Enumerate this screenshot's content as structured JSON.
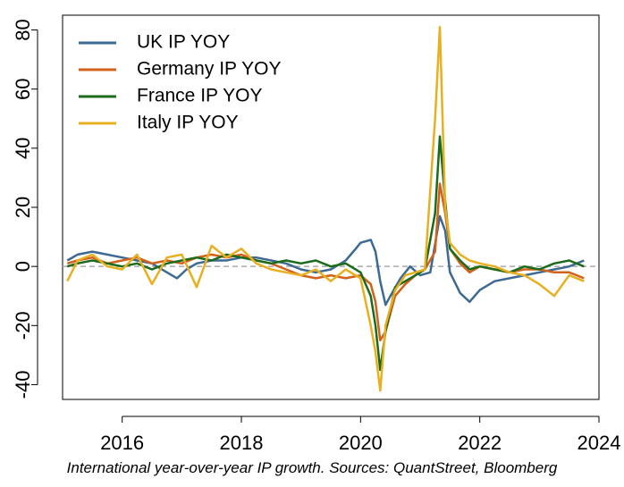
{
  "caption": "International year-over-year IP growth. Sources: QuantStreet, Bloomberg",
  "chart_data": {
    "type": "line",
    "title": "",
    "xlabel": "",
    "ylabel": "",
    "xlim": [
      2015.0,
      2024.0
    ],
    "ylim": [
      -45,
      85
    ],
    "x_ticks": [
      2016,
      2018,
      2020,
      2022,
      2024
    ],
    "y_ticks": [
      -40,
      -20,
      0,
      20,
      40,
      60,
      80
    ],
    "reference_line": {
      "y": 0,
      "style": "dashed",
      "color": "#aaaaaa"
    },
    "legend_position": "top-left",
    "grid": false,
    "series": [
      {
        "name": "UK IP YOY",
        "color": "#3d6a93",
        "points": [
          [
            2015.08,
            2
          ],
          [
            2015.25,
            4
          ],
          [
            2015.5,
            5
          ],
          [
            2015.75,
            4
          ],
          [
            2016.0,
            3
          ],
          [
            2016.25,
            2
          ],
          [
            2016.5,
            1
          ],
          [
            2016.75,
            -2
          ],
          [
            2016.92,
            -4
          ],
          [
            2017.08,
            -1
          ],
          [
            2017.25,
            1
          ],
          [
            2017.5,
            2
          ],
          [
            2017.75,
            2
          ],
          [
            2018.0,
            3
          ],
          [
            2018.25,
            3
          ],
          [
            2018.5,
            2
          ],
          [
            2018.75,
            1
          ],
          [
            2019.0,
            -1
          ],
          [
            2019.25,
            -2
          ],
          [
            2019.5,
            -1
          ],
          [
            2019.75,
            2
          ],
          [
            2019.92,
            6
          ],
          [
            2020.0,
            8
          ],
          [
            2020.17,
            9
          ],
          [
            2020.25,
            5
          ],
          [
            2020.33,
            -5
          ],
          [
            2020.42,
            -13
          ],
          [
            2020.5,
            -10
          ],
          [
            2020.67,
            -4
          ],
          [
            2020.83,
            0
          ],
          [
            2021.0,
            -3
          ],
          [
            2021.17,
            -2
          ],
          [
            2021.33,
            17
          ],
          [
            2021.42,
            12
          ],
          [
            2021.5,
            -2
          ],
          [
            2021.67,
            -9
          ],
          [
            2021.83,
            -12
          ],
          [
            2022.0,
            -8
          ],
          [
            2022.25,
            -5
          ],
          [
            2022.5,
            -4
          ],
          [
            2022.75,
            -3
          ],
          [
            2023.0,
            -2
          ],
          [
            2023.25,
            -1
          ],
          [
            2023.5,
            0
          ],
          [
            2023.75,
            2
          ]
        ]
      },
      {
        "name": "Germany IP YOY",
        "color": "#d2621b",
        "points": [
          [
            2015.08,
            1
          ],
          [
            2015.25,
            2
          ],
          [
            2015.5,
            3
          ],
          [
            2015.75,
            1
          ],
          [
            2016.0,
            2
          ],
          [
            2016.25,
            3
          ],
          [
            2016.5,
            1
          ],
          [
            2016.75,
            2
          ],
          [
            2017.0,
            1
          ],
          [
            2017.25,
            3
          ],
          [
            2017.5,
            4
          ],
          [
            2017.75,
            3
          ],
          [
            2018.0,
            4
          ],
          [
            2018.25,
            2
          ],
          [
            2018.5,
            1
          ],
          [
            2018.75,
            -1
          ],
          [
            2019.0,
            -3
          ],
          [
            2019.25,
            -4
          ],
          [
            2019.5,
            -3
          ],
          [
            2019.75,
            -4
          ],
          [
            2020.0,
            -3
          ],
          [
            2020.17,
            -6
          ],
          [
            2020.25,
            -12
          ],
          [
            2020.33,
            -25
          ],
          [
            2020.42,
            -22
          ],
          [
            2020.58,
            -10
          ],
          [
            2020.75,
            -6
          ],
          [
            2020.92,
            -3
          ],
          [
            2021.08,
            -1
          ],
          [
            2021.25,
            5
          ],
          [
            2021.33,
            28
          ],
          [
            2021.42,
            18
          ],
          [
            2021.5,
            6
          ],
          [
            2021.67,
            1
          ],
          [
            2021.83,
            -2
          ],
          [
            2022.0,
            0
          ],
          [
            2022.25,
            -1
          ],
          [
            2022.5,
            -2
          ],
          [
            2022.75,
            -1
          ],
          [
            2023.0,
            -1
          ],
          [
            2023.25,
            -2
          ],
          [
            2023.5,
            -2
          ],
          [
            2023.75,
            -4
          ]
        ]
      },
      {
        "name": "France IP YOY",
        "color": "#1c6b1c",
        "points": [
          [
            2015.08,
            0
          ],
          [
            2015.25,
            1
          ],
          [
            2015.5,
            2
          ],
          [
            2015.75,
            1
          ],
          [
            2016.0,
            0
          ],
          [
            2016.25,
            1
          ],
          [
            2016.5,
            -1
          ],
          [
            2016.75,
            1
          ],
          [
            2017.0,
            2
          ],
          [
            2017.25,
            3
          ],
          [
            2017.5,
            2
          ],
          [
            2017.75,
            4
          ],
          [
            2018.0,
            3
          ],
          [
            2018.25,
            2
          ],
          [
            2018.5,
            1
          ],
          [
            2018.75,
            2
          ],
          [
            2019.0,
            1
          ],
          [
            2019.25,
            2
          ],
          [
            2019.5,
            0
          ],
          [
            2019.75,
            1
          ],
          [
            2020.0,
            -2
          ],
          [
            2020.17,
            -10
          ],
          [
            2020.25,
            -20
          ],
          [
            2020.33,
            -35
          ],
          [
            2020.42,
            -22
          ],
          [
            2020.58,
            -7
          ],
          [
            2020.75,
            -5
          ],
          [
            2020.92,
            -3
          ],
          [
            2021.08,
            -1
          ],
          [
            2021.25,
            18
          ],
          [
            2021.33,
            44
          ],
          [
            2021.42,
            22
          ],
          [
            2021.5,
            6
          ],
          [
            2021.67,
            2
          ],
          [
            2021.83,
            -1
          ],
          [
            2022.0,
            0
          ],
          [
            2022.25,
            -1
          ],
          [
            2022.5,
            -2
          ],
          [
            2022.75,
            0
          ],
          [
            2023.0,
            -1
          ],
          [
            2023.25,
            1
          ],
          [
            2023.5,
            2
          ],
          [
            2023.75,
            0
          ]
        ]
      },
      {
        "name": "Italy IP YOY",
        "color": "#e8b020",
        "points": [
          [
            2015.08,
            -5
          ],
          [
            2015.25,
            2
          ],
          [
            2015.5,
            4
          ],
          [
            2015.75,
            0
          ],
          [
            2016.0,
            -1
          ],
          [
            2016.25,
            4
          ],
          [
            2016.5,
            -6
          ],
          [
            2016.75,
            3
          ],
          [
            2017.0,
            4
          ],
          [
            2017.25,
            -7
          ],
          [
            2017.5,
            7
          ],
          [
            2017.75,
            3
          ],
          [
            2018.0,
            6
          ],
          [
            2018.25,
            1
          ],
          [
            2018.5,
            -1
          ],
          [
            2018.75,
            -2
          ],
          [
            2019.0,
            -3
          ],
          [
            2019.25,
            -1
          ],
          [
            2019.5,
            -5
          ],
          [
            2019.75,
            -1
          ],
          [
            2020.0,
            -4
          ],
          [
            2020.17,
            -20
          ],
          [
            2020.25,
            -29
          ],
          [
            2020.33,
            -42
          ],
          [
            2020.42,
            -20
          ],
          [
            2020.58,
            -8
          ],
          [
            2020.75,
            -3
          ],
          [
            2020.92,
            -2
          ],
          [
            2021.08,
            -1
          ],
          [
            2021.25,
            50
          ],
          [
            2021.33,
            81
          ],
          [
            2021.42,
            20
          ],
          [
            2021.5,
            8
          ],
          [
            2021.67,
            4
          ],
          [
            2021.83,
            2
          ],
          [
            2022.0,
            1
          ],
          [
            2022.25,
            0
          ],
          [
            2022.5,
            -2
          ],
          [
            2022.75,
            -3
          ],
          [
            2023.0,
            -6
          ],
          [
            2023.25,
            -10
          ],
          [
            2023.5,
            -3
          ],
          [
            2023.75,
            -5
          ]
        ]
      }
    ]
  }
}
